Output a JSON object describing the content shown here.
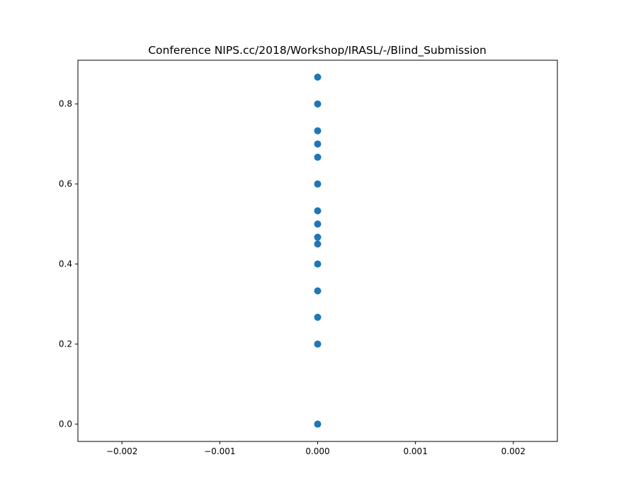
{
  "chart_data": {
    "type": "scatter",
    "title": "Conference NIPS.cc/2018/Workshop/IRASL/-/Blind_Submission",
    "xlabel": "",
    "ylabel": "",
    "xlim": [
      -0.00245,
      0.00245
    ],
    "ylim": [
      -0.0433,
      0.9093
    ],
    "grid": false,
    "legend": "none",
    "marker_color": "#1f77b4",
    "x_ticks": [
      {
        "value": -0.002,
        "label": "−0.002"
      },
      {
        "value": -0.001,
        "label": "−0.001"
      },
      {
        "value": 0.0,
        "label": "0.000"
      },
      {
        "value": 0.001,
        "label": "0.001"
      },
      {
        "value": 0.002,
        "label": "0.002"
      }
    ],
    "y_ticks": [
      {
        "value": 0.0,
        "label": "0.0"
      },
      {
        "value": 0.2,
        "label": "0.2"
      },
      {
        "value": 0.4,
        "label": "0.4"
      },
      {
        "value": 0.6,
        "label": "0.6"
      },
      {
        "value": 0.8,
        "label": "0.8"
      }
    ],
    "points": [
      {
        "x": 0,
        "y": 0.867
      },
      {
        "x": 0,
        "y": 0.8
      },
      {
        "x": 0,
        "y": 0.733
      },
      {
        "x": 0,
        "y": 0.7
      },
      {
        "x": 0,
        "y": 0.667
      },
      {
        "x": 0,
        "y": 0.6
      },
      {
        "x": 0,
        "y": 0.533
      },
      {
        "x": 0,
        "y": 0.5
      },
      {
        "x": 0,
        "y": 0.467
      },
      {
        "x": 0,
        "y": 0.45
      },
      {
        "x": 0,
        "y": 0.4
      },
      {
        "x": 0,
        "y": 0.333
      },
      {
        "x": 0,
        "y": 0.267
      },
      {
        "x": 0,
        "y": 0.2
      },
      {
        "x": 0,
        "y": 0.0
      }
    ]
  }
}
